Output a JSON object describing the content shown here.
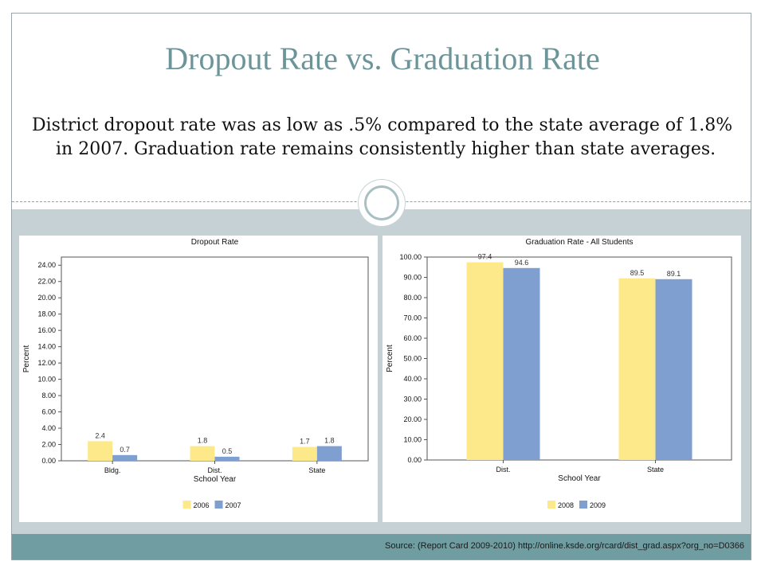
{
  "slide": {
    "title": "Dropout Rate vs. Graduation Rate",
    "body": "District dropout rate was as low as .5% compared to the state average of 1.8% in 2007. Graduation rate remains consistently higher than state averages.",
    "source": "Source: (Report Card 2009-2010) http://online.ksde.org/rcard/dist_grad.aspx?org_no=D0366"
  },
  "colors": {
    "title": "#6b9598",
    "series_a": "#fde98a",
    "series_b": "#7f9fd0",
    "band": "#c5d1d5",
    "footer": "#6f9da1"
  },
  "chart_data": [
    {
      "type": "bar",
      "title": "Dropout Rate",
      "xlabel": "School Year",
      "ylabel": "Percent",
      "categories": [
        "Bldg.",
        "Dist.",
        "State"
      ],
      "series": [
        {
          "name": "2006",
          "values": [
            2.4,
            1.8,
            1.7
          ],
          "labels": [
            "2.4",
            "1.8",
            "1.7"
          ]
        },
        {
          "name": "2007",
          "values": [
            0.7,
            0.5,
            1.8
          ],
          "labels": [
            "0.7",
            "0.5",
            "1.8"
          ]
        }
      ],
      "ylim": [
        0,
        25
      ],
      "yticks": [
        0,
        2,
        4,
        6,
        8,
        10,
        12,
        14,
        16,
        18,
        20,
        22,
        24
      ],
      "ytick_labels": [
        "0.00",
        "2.00",
        "4.00",
        "6.00",
        "8.00",
        "10.00",
        "12.00",
        "14.00",
        "16.00",
        "18.00",
        "20.00",
        "22.00",
        "24.00"
      ],
      "grid": false,
      "legend": "bottom"
    },
    {
      "type": "bar",
      "title": "Graduation Rate - All Students",
      "xlabel": "School Year",
      "ylabel": "Percent",
      "categories": [
        "Dist.",
        "State"
      ],
      "series": [
        {
          "name": "2008",
          "values": [
            97.4,
            89.5
          ],
          "labels": [
            "97.4",
            "89.5"
          ]
        },
        {
          "name": "2009",
          "values": [
            94.6,
            89.1
          ],
          "labels": [
            "94.6",
            "89.1"
          ]
        }
      ],
      "ylim": [
        0,
        100
      ],
      "yticks": [
        0,
        10,
        20,
        30,
        40,
        50,
        60,
        70,
        80,
        90,
        100
      ],
      "ytick_labels": [
        "0.00",
        "10.00",
        "20.00",
        "30.00",
        "40.00",
        "50.00",
        "60.00",
        "70.00",
        "80.00",
        "90.00",
        "100.00"
      ],
      "grid": false,
      "legend": "bottom"
    }
  ]
}
